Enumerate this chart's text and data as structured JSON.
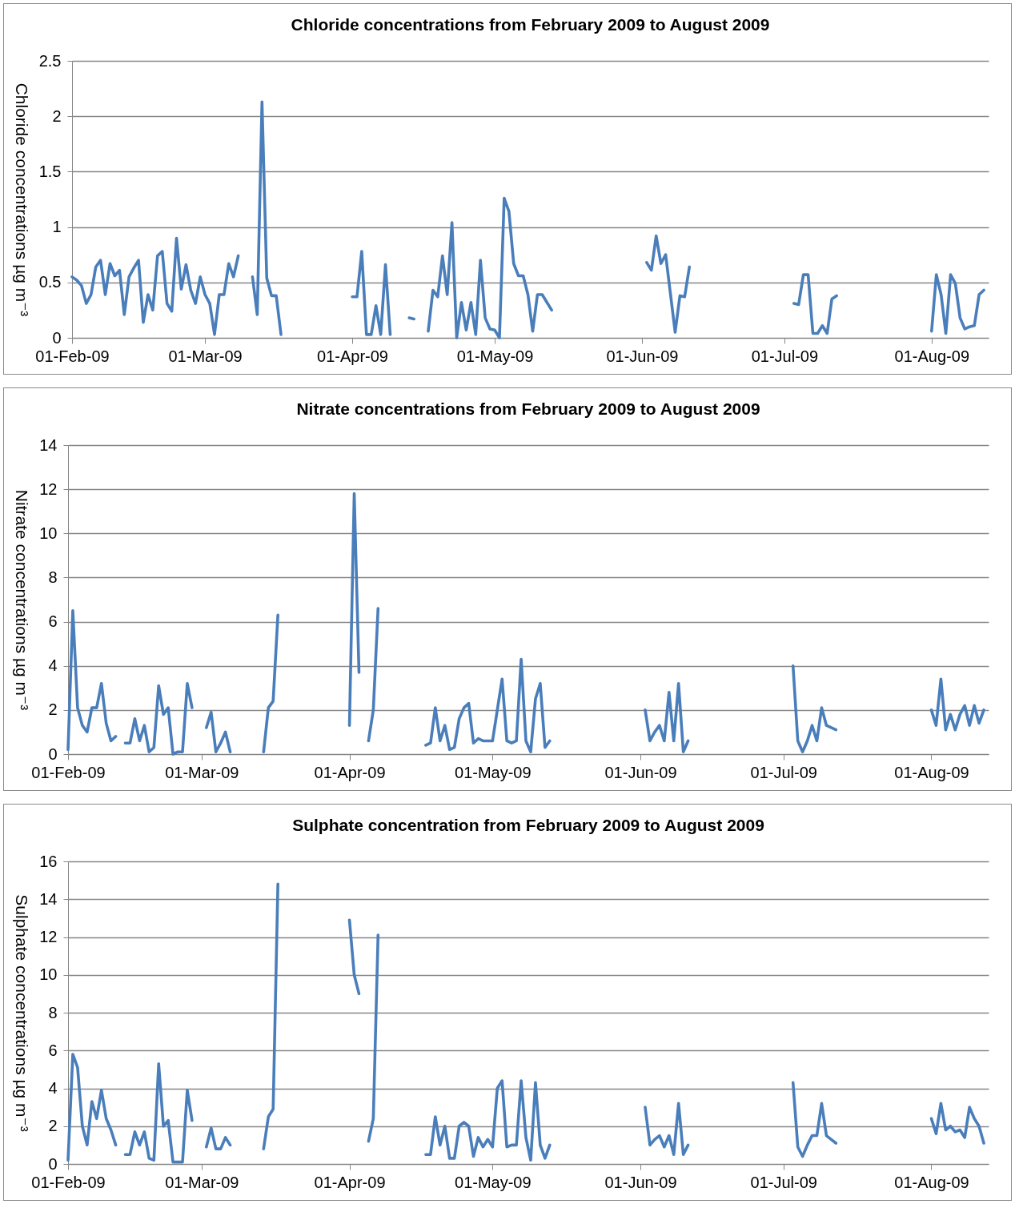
{
  "chart_data": [
    {
      "type": "line",
      "title": "Chloride concentrations from February 2009 to August 2009",
      "ylabel": "Chloride concentrations  µg m⁻³",
      "grid": "y",
      "line_style": "solid",
      "xlim": [
        "2009-02-01",
        "2009-08-13"
      ],
      "xticks": [
        {
          "value": "2009-02-01",
          "label": "01-Feb-09"
        },
        {
          "value": "2009-03-01",
          "label": "01-Mar-09"
        },
        {
          "value": "2009-04-01",
          "label": "01-Apr-09"
        },
        {
          "value": "2009-05-01",
          "label": "01-May-09"
        },
        {
          "value": "2009-06-01",
          "label": "01-Jun-09"
        },
        {
          "value": "2009-07-01",
          "label": "01-Jul-09"
        },
        {
          "value": "2009-08-01",
          "label": "01-Aug-09"
        }
      ],
      "ylim": [
        0,
        2.5
      ],
      "yticks": [
        0,
        0.5,
        1,
        1.5,
        2,
        2.5
      ],
      "x": [
        "2009-02-01",
        "2009-02-02",
        "2009-02-03",
        "2009-02-04",
        "2009-02-05",
        "2009-02-06",
        "2009-02-07",
        "2009-02-08",
        "2009-02-09",
        "2009-02-10",
        "2009-02-11",
        "2009-02-12",
        "2009-02-13",
        "2009-02-14",
        "2009-02-15",
        "2009-02-16",
        "2009-02-17",
        "2009-02-18",
        "2009-02-19",
        "2009-02-20",
        "2009-02-21",
        "2009-02-22",
        "2009-02-23",
        "2009-02-24",
        "2009-02-25",
        "2009-02-26",
        "2009-02-27",
        "2009-02-28",
        "2009-03-01",
        "2009-03-02",
        "2009-03-03",
        "2009-03-04",
        "2009-03-05",
        "2009-03-06",
        "2009-03-07",
        "2009-03-08",
        "2009-03-09",
        "2009-03-11",
        "2009-03-12",
        "2009-03-13",
        "2009-03-14",
        "2009-03-15",
        "2009-03-16",
        "2009-03-17",
        "2009-03-20",
        "2009-04-01",
        "2009-04-02",
        "2009-04-03",
        "2009-04-04",
        "2009-04-05",
        "2009-04-06",
        "2009-04-07",
        "2009-04-08",
        "2009-04-09",
        "2009-04-10",
        "2009-04-13",
        "2009-04-14",
        "2009-04-15",
        "2009-04-17",
        "2009-04-18",
        "2009-04-19",
        "2009-04-20",
        "2009-04-21",
        "2009-04-22",
        "2009-04-23",
        "2009-04-24",
        "2009-04-25",
        "2009-04-26",
        "2009-04-27",
        "2009-04-28",
        "2009-04-29",
        "2009-04-30",
        "2009-05-01",
        "2009-05-02",
        "2009-05-03",
        "2009-05-04",
        "2009-05-05",
        "2009-05-06",
        "2009-05-07",
        "2009-05-08",
        "2009-05-09",
        "2009-05-10",
        "2009-05-11",
        "2009-05-12",
        "2009-05-13",
        "2009-05-20",
        "2009-06-02",
        "2009-06-03",
        "2009-06-04",
        "2009-06-05",
        "2009-06-06",
        "2009-06-07",
        "2009-06-08",
        "2009-06-09",
        "2009-06-10",
        "2009-06-11",
        "2009-06-20",
        "2009-07-03",
        "2009-07-04",
        "2009-07-05",
        "2009-07-06",
        "2009-07-07",
        "2009-07-08",
        "2009-07-09",
        "2009-07-10",
        "2009-07-11",
        "2009-07-12",
        "2009-07-20",
        "2009-08-01",
        "2009-08-02",
        "2009-08-03",
        "2009-08-04",
        "2009-08-05",
        "2009-08-06",
        "2009-08-07",
        "2009-08-08",
        "2009-08-09",
        "2009-08-10",
        "2009-08-11",
        "2009-08-12"
      ],
      "series": [
        {
          "color": "#4a7ebb",
          "values": [
            0.55,
            0.52,
            0.47,
            0.31,
            0.39,
            0.64,
            0.7,
            0.39,
            0.67,
            0.56,
            0.61,
            0.21,
            0.55,
            0.63,
            0.7,
            0.14,
            0.39,
            0.25,
            0.74,
            0.78,
            0.31,
            0.24,
            0.9,
            0.44,
            0.66,
            0.43,
            0.31,
            0.55,
            0.39,
            0.31,
            0.03,
            0.39,
            0.39,
            0.67,
            0.55,
            0.74,
            null,
            0.55,
            0.21,
            2.13,
            0.54,
            0.38,
            0.38,
            0.03,
            null,
            0.37,
            0.37,
            0.78,
            0.03,
            0.03,
            0.29,
            0.03,
            0.66,
            0.03,
            null,
            0.18,
            0.17,
            null,
            0.06,
            0.43,
            0.37,
            0.74,
            0.39,
            1.04,
            0.0,
            0.32,
            0.07,
            0.32,
            0.03,
            0.7,
            0.18,
            0.08,
            0.07,
            0.0,
            1.26,
            1.14,
            0.67,
            0.56,
            0.56,
            0.39,
            0.06,
            0.39,
            0.39,
            0.32,
            0.25,
            null,
            0.68,
            0.61,
            0.92,
            0.67,
            0.75,
            0.4,
            0.05,
            0.38,
            0.37,
            0.64,
            null,
            0.31,
            0.3,
            0.57,
            0.57,
            0.04,
            0.04,
            0.11,
            0.04,
            0.35,
            0.38,
            null,
            0.06,
            0.57,
            0.39,
            0.04,
            0.57,
            0.49,
            0.18,
            0.08,
            0.1,
            0.11,
            0.39,
            0.43
          ]
        }
      ]
    },
    {
      "type": "line",
      "title": "Nitrate concentrations from February 2009 to August 2009",
      "ylabel": "Nitrate concentrations  µg m⁻³",
      "grid": "y",
      "line_style": "solid",
      "xlim": [
        "2009-02-01",
        "2009-08-13"
      ],
      "xticks": [
        {
          "value": "2009-02-01",
          "label": "01-Feb-09"
        },
        {
          "value": "2009-03-01",
          "label": "01-Mar-09"
        },
        {
          "value": "2009-04-01",
          "label": "01-Apr-09"
        },
        {
          "value": "2009-05-01",
          "label": "01-May-09"
        },
        {
          "value": "2009-06-01",
          "label": "01-Jun-09"
        },
        {
          "value": "2009-07-01",
          "label": "01-Jul-09"
        },
        {
          "value": "2009-08-01",
          "label": "01-Aug-09"
        }
      ],
      "ylim": [
        0,
        14
      ],
      "yticks": [
        0,
        2,
        4,
        6,
        8,
        10,
        12,
        14
      ],
      "x": [
        "2009-02-01",
        "2009-02-02",
        "2009-02-03",
        "2009-02-04",
        "2009-02-05",
        "2009-02-06",
        "2009-02-07",
        "2009-02-08",
        "2009-02-09",
        "2009-02-10",
        "2009-02-11",
        "2009-02-12",
        "2009-02-13",
        "2009-02-14",
        "2009-02-15",
        "2009-02-16",
        "2009-02-17",
        "2009-02-18",
        "2009-02-19",
        "2009-02-20",
        "2009-02-21",
        "2009-02-22",
        "2009-02-23",
        "2009-02-24",
        "2009-02-25",
        "2009-02-26",
        "2009-02-27",
        "2009-02-28",
        "2009-03-02",
        "2009-03-03",
        "2009-03-04",
        "2009-03-05",
        "2009-03-06",
        "2009-03-07",
        "2009-03-10",
        "2009-03-14",
        "2009-03-15",
        "2009-03-16",
        "2009-03-17",
        "2009-03-20",
        "2009-04-01",
        "2009-04-02",
        "2009-04-03",
        "2009-04-04",
        "2009-04-05",
        "2009-04-06",
        "2009-04-07",
        "2009-04-10",
        "2009-04-17",
        "2009-04-18",
        "2009-04-19",
        "2009-04-20",
        "2009-04-21",
        "2009-04-22",
        "2009-04-23",
        "2009-04-24",
        "2009-04-25",
        "2009-04-26",
        "2009-04-27",
        "2009-04-28",
        "2009-04-29",
        "2009-04-30",
        "2009-05-01",
        "2009-05-02",
        "2009-05-03",
        "2009-05-04",
        "2009-05-05",
        "2009-05-06",
        "2009-05-07",
        "2009-05-08",
        "2009-05-09",
        "2009-05-10",
        "2009-05-11",
        "2009-05-12",
        "2009-05-13",
        "2009-05-20",
        "2009-06-02",
        "2009-06-03",
        "2009-06-04",
        "2009-06-05",
        "2009-06-06",
        "2009-06-07",
        "2009-06-08",
        "2009-06-09",
        "2009-06-10",
        "2009-06-11",
        "2009-06-20",
        "2009-07-03",
        "2009-07-04",
        "2009-07-05",
        "2009-07-06",
        "2009-07-07",
        "2009-07-08",
        "2009-07-09",
        "2009-07-10",
        "2009-07-11",
        "2009-07-12",
        "2009-07-20",
        "2009-08-01",
        "2009-08-02",
        "2009-08-03",
        "2009-08-04",
        "2009-08-05",
        "2009-08-06",
        "2009-08-07",
        "2009-08-08",
        "2009-08-09",
        "2009-08-10",
        "2009-08-11",
        "2009-08-12"
      ],
      "series": [
        {
          "color": "#4a7ebb",
          "values": [
            0.2,
            6.5,
            2.1,
            1.3,
            1.0,
            2.1,
            2.1,
            3.2,
            1.4,
            0.6,
            0.8,
            null,
            0.5,
            0.5,
            1.6,
            0.6,
            1.3,
            0.1,
            0.3,
            3.1,
            1.8,
            2.1,
            0.0,
            0.1,
            0.1,
            3.2,
            2.1,
            null,
            1.2,
            1.9,
            0.1,
            0.5,
            1.0,
            0.1,
            null,
            0.1,
            2.1,
            2.4,
            6.3,
            null,
            1.3,
            11.8,
            3.7,
            null,
            0.6,
            2.0,
            6.6,
            null,
            0.4,
            0.5,
            2.1,
            0.6,
            1.3,
            0.2,
            0.3,
            1.6,
            2.1,
            2.3,
            0.5,
            0.7,
            0.6,
            0.6,
            0.6,
            2.0,
            3.4,
            0.6,
            0.5,
            0.6,
            4.3,
            0.6,
            0.1,
            2.5,
            3.2,
            0.3,
            0.6,
            null,
            2.0,
            0.6,
            1.0,
            1.3,
            0.6,
            2.8,
            0.6,
            3.2,
            0.1,
            0.6,
            null,
            4.0,
            0.6,
            0.1,
            0.6,
            1.3,
            0.6,
            2.1,
            1.3,
            1.2,
            1.1,
            null,
            2.0,
            1.3,
            3.4,
            1.1,
            1.8,
            1.1,
            1.8,
            2.2,
            1.3,
            2.2,
            1.4,
            2.0
          ]
        }
      ]
    },
    {
      "type": "line",
      "title": "Sulphate concentration from February 2009 to August 2009",
      "ylabel": "Sulphate concentrations µg m⁻³",
      "grid": "y",
      "line_style": "solid",
      "xlim": [
        "2009-02-01",
        "2009-08-13"
      ],
      "xticks": [
        {
          "value": "2009-02-01",
          "label": "01-Feb-09"
        },
        {
          "value": "2009-03-01",
          "label": "01-Mar-09"
        },
        {
          "value": "2009-04-01",
          "label": "01-Apr-09"
        },
        {
          "value": "2009-05-01",
          "label": "01-May-09"
        },
        {
          "value": "2009-06-01",
          "label": "01-Jun-09"
        },
        {
          "value": "2009-07-01",
          "label": "01-Jul-09"
        },
        {
          "value": "2009-08-01",
          "label": "01-Aug-09"
        }
      ],
      "ylim": [
        0,
        16
      ],
      "yticks": [
        0,
        2,
        4,
        6,
        8,
        10,
        12,
        14,
        16
      ],
      "x": [
        "2009-02-01",
        "2009-02-02",
        "2009-02-03",
        "2009-02-04",
        "2009-02-05",
        "2009-02-06",
        "2009-02-07",
        "2009-02-08",
        "2009-02-09",
        "2009-02-10",
        "2009-02-11",
        "2009-02-12",
        "2009-02-13",
        "2009-02-14",
        "2009-02-15",
        "2009-02-16",
        "2009-02-17",
        "2009-02-18",
        "2009-02-19",
        "2009-02-20",
        "2009-02-21",
        "2009-02-22",
        "2009-02-23",
        "2009-02-24",
        "2009-02-25",
        "2009-02-26",
        "2009-02-27",
        "2009-02-28",
        "2009-03-02",
        "2009-03-03",
        "2009-03-04",
        "2009-03-05",
        "2009-03-06",
        "2009-03-07",
        "2009-03-10",
        "2009-03-14",
        "2009-03-15",
        "2009-03-16",
        "2009-03-17",
        "2009-03-20",
        "2009-04-01",
        "2009-04-02",
        "2009-04-03",
        "2009-04-04",
        "2009-04-05",
        "2009-04-06",
        "2009-04-07",
        "2009-04-10",
        "2009-04-17",
        "2009-04-18",
        "2009-04-19",
        "2009-04-20",
        "2009-04-21",
        "2009-04-22",
        "2009-04-23",
        "2009-04-24",
        "2009-04-25",
        "2009-04-26",
        "2009-04-27",
        "2009-04-28",
        "2009-04-29",
        "2009-04-30",
        "2009-05-01",
        "2009-05-02",
        "2009-05-03",
        "2009-05-04",
        "2009-05-05",
        "2009-05-06",
        "2009-05-07",
        "2009-05-08",
        "2009-05-09",
        "2009-05-10",
        "2009-05-11",
        "2009-05-12",
        "2009-05-13",
        "2009-05-20",
        "2009-06-02",
        "2009-06-03",
        "2009-06-04",
        "2009-06-05",
        "2009-06-06",
        "2009-06-07",
        "2009-06-08",
        "2009-06-09",
        "2009-06-10",
        "2009-06-11",
        "2009-06-20",
        "2009-07-03",
        "2009-07-04",
        "2009-07-05",
        "2009-07-06",
        "2009-07-07",
        "2009-07-08",
        "2009-07-09",
        "2009-07-10",
        "2009-07-11",
        "2009-07-12",
        "2009-07-20",
        "2009-08-01",
        "2009-08-02",
        "2009-08-03",
        "2009-08-04",
        "2009-08-05",
        "2009-08-06",
        "2009-08-07",
        "2009-08-08",
        "2009-08-09",
        "2009-08-10",
        "2009-08-11",
        "2009-08-12"
      ],
      "series": [
        {
          "color": "#4a7ebb",
          "values": [
            0.2,
            5.8,
            5.1,
            2.0,
            1.0,
            3.3,
            2.4,
            3.9,
            2.4,
            1.8,
            1.0,
            null,
            0.5,
            0.5,
            1.7,
            1.0,
            1.7,
            0.3,
            0.2,
            5.3,
            2.0,
            2.3,
            0.1,
            0.1,
            0.1,
            3.9,
            2.3,
            null,
            0.9,
            1.9,
            0.8,
            0.8,
            1.4,
            1.0,
            null,
            0.8,
            2.5,
            2.9,
            14.8,
            null,
            12.9,
            10.0,
            9.0,
            null,
            1.2,
            2.4,
            12.1,
            null,
            0.5,
            0.5,
            2.5,
            1.0,
            2.0,
            0.3,
            0.3,
            2.0,
            2.2,
            2.0,
            0.4,
            1.4,
            0.9,
            1.3,
            0.9,
            4.0,
            4.4,
            0.9,
            1.0,
            1.0,
            4.4,
            1.4,
            0.2,
            4.3,
            1.0,
            0.3,
            1.0,
            null,
            3.0,
            1.0,
            1.3,
            1.5,
            0.9,
            1.5,
            0.5,
            3.2,
            0.5,
            1.0,
            null,
            4.3,
            0.9,
            0.4,
            1.0,
            1.5,
            1.5,
            3.2,
            1.5,
            1.3,
            1.1,
            null,
            2.4,
            1.6,
            3.2,
            1.8,
            2.0,
            1.7,
            1.8,
            1.4,
            3.0,
            2.4,
            2.0,
            1.1
          ]
        }
      ]
    }
  ]
}
